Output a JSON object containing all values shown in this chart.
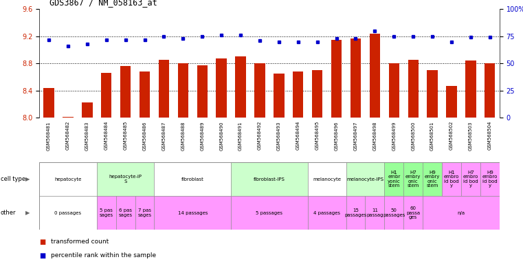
{
  "title": "GDS3867 / NM_058163_at",
  "samples": [
    "GSM568481",
    "GSM568482",
    "GSM568483",
    "GSM568484",
    "GSM568485",
    "GSM568486",
    "GSM568487",
    "GSM568488",
    "GSM568489",
    "GSM568490",
    "GSM568491",
    "GSM568492",
    "GSM568493",
    "GSM568494",
    "GSM568495",
    "GSM568496",
    "GSM568497",
    "GSM568498",
    "GSM568499",
    "GSM568500",
    "GSM568501",
    "GSM568502",
    "GSM568503",
    "GSM568504"
  ],
  "transformed_count": [
    8.44,
    8.01,
    8.22,
    8.66,
    8.76,
    8.68,
    8.85,
    8.8,
    8.77,
    8.87,
    8.9,
    8.8,
    8.65,
    8.68,
    8.7,
    9.15,
    9.17,
    9.24,
    8.8,
    8.85,
    8.7,
    8.47,
    8.84,
    8.8
  ],
  "percentile_rank": [
    72,
    66,
    68,
    72,
    72,
    72,
    75,
    73,
    75,
    76,
    76,
    71,
    70,
    70,
    70,
    73,
    73,
    80,
    75,
    75,
    75,
    70,
    74,
    74
  ],
  "ylim_left": [
    8.0,
    9.6
  ],
  "yticks_left": [
    8.0,
    8.4,
    8.8,
    9.2,
    9.6
  ],
  "yticks_right": [
    0,
    25,
    50,
    75,
    100
  ],
  "ytick_labels_right": [
    "0",
    "25",
    "50",
    "75",
    "100%"
  ],
  "bar_color": "#cc2200",
  "dot_color": "#0000cc",
  "cell_type_groups": [
    {
      "label": "hepatocyte",
      "start": 0,
      "end": 2,
      "color": "#ffffff"
    },
    {
      "label": "hepatocyte-iP\nS",
      "start": 3,
      "end": 5,
      "color": "#ccffcc"
    },
    {
      "label": "fibroblast",
      "start": 6,
      "end": 9,
      "color": "#ffffff"
    },
    {
      "label": "fibroblast-IPS",
      "start": 10,
      "end": 13,
      "color": "#ccffcc"
    },
    {
      "label": "melanocyte",
      "start": 14,
      "end": 15,
      "color": "#ffffff"
    },
    {
      "label": "melanocyte-IPS",
      "start": 16,
      "end": 17,
      "color": "#ccffcc"
    },
    {
      "label": "H1\nembr\nyonic\nstem",
      "start": 18,
      "end": 18,
      "color": "#99ff99"
    },
    {
      "label": "H7\nembry\nonic\nstem",
      "start": 19,
      "end": 19,
      "color": "#99ff99"
    },
    {
      "label": "H9\nembry\nonic\nstem",
      "start": 20,
      "end": 20,
      "color": "#99ff99"
    },
    {
      "label": "H1\nembro\nid bod\ny",
      "start": 21,
      "end": 21,
      "color": "#ff99ff"
    },
    {
      "label": "H7\nembro\nid bod\ny",
      "start": 22,
      "end": 22,
      "color": "#ff99ff"
    },
    {
      "label": "H9\nembro\nid bod\ny",
      "start": 23,
      "end": 23,
      "color": "#ff99ff"
    }
  ],
  "other_groups": [
    {
      "label": "0 passages",
      "start": 0,
      "end": 2,
      "color": "#ffffff"
    },
    {
      "label": "5 pas\nsages",
      "start": 3,
      "end": 3,
      "color": "#ff99ff"
    },
    {
      "label": "6 pas\nsages",
      "start": 4,
      "end": 4,
      "color": "#ff99ff"
    },
    {
      "label": "7 pas\nsages",
      "start": 5,
      "end": 5,
      "color": "#ff99ff"
    },
    {
      "label": "14 passages",
      "start": 6,
      "end": 9,
      "color": "#ff99ff"
    },
    {
      "label": "5 passages",
      "start": 10,
      "end": 13,
      "color": "#ff99ff"
    },
    {
      "label": "4 passages",
      "start": 14,
      "end": 15,
      "color": "#ff99ff"
    },
    {
      "label": "15\npassages",
      "start": 16,
      "end": 16,
      "color": "#ff99ff"
    },
    {
      "label": "11\npassag",
      "start": 17,
      "end": 17,
      "color": "#ff99ff"
    },
    {
      "label": "50\npassages",
      "start": 18,
      "end": 18,
      "color": "#ff99ff"
    },
    {
      "label": "60\npassa\nges",
      "start": 19,
      "end": 19,
      "color": "#ff99ff"
    },
    {
      "label": "n/a",
      "start": 20,
      "end": 23,
      "color": "#ff99ff"
    }
  ],
  "grid_lines": [
    8.4,
    8.8,
    9.2
  ],
  "bg_color": "#ffffff",
  "xticklabel_bg": "#dddddd"
}
